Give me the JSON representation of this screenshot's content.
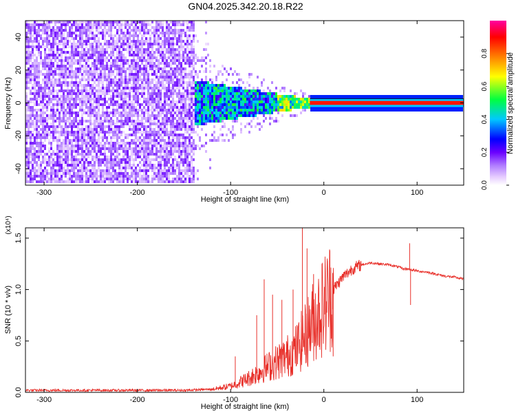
{
  "chart_data": [
    {
      "type": "heatmap",
      "title": "GN04.2025.342.20.18.R22",
      "xlabel": "Height of straight line (km)",
      "ylabel": "Frequency (Hz)",
      "xlim": [
        -320,
        150
      ],
      "ylim": [
        -50,
        50
      ],
      "xticks": [
        -300,
        -200,
        -100,
        0,
        100
      ],
      "yticks": [
        -40,
        -20,
        0,
        20,
        40
      ],
      "colorbar": {
        "label": "Normalized spectral amplitude",
        "range": [
          0,
          1
        ],
        "ticks": [
          "0.0",
          "0.2",
          "0.4",
          "0.6",
          "0.8"
        ],
        "tick_values": [
          0.0,
          0.2,
          0.4,
          0.6,
          0.8
        ],
        "colors": [
          "#ffffff",
          "#e6ccff",
          "#b07cff",
          "#6a00ff",
          "#0000ff",
          "#00c8ff",
          "#00ff40",
          "#ffff00",
          "#ff8000",
          "#ff0000",
          "#ff00a0"
        ]
      },
      "features": {
        "noise_region_end_km": -138,
        "tone_frequency_hz": 0,
        "tone_onset_km": -130,
        "tone_clean_from_km": -15
      }
    },
    {
      "type": "line",
      "xlabel": "Height of straight line (km)",
      "ylabel": "SNR (10 * v/v)",
      "scale_label": "(x10⁴)",
      "xlim": [
        -320,
        150
      ],
      "ylim": [
        0,
        1.6
      ],
      "xticks": [
        -300,
        -200,
        -100,
        0,
        100
      ],
      "yticks": [
        "0.0",
        "0.5",
        "1.0",
        "1.5"
      ],
      "ytick_values": [
        0.0,
        0.5,
        1.0,
        1.5
      ],
      "series": [
        {
          "name": "SNR",
          "color": "#e8302a",
          "envelope_x": [
            -320,
            -150,
            -120,
            -100,
            -80,
            -60,
            -40,
            -30,
            -20,
            -10,
            0,
            10,
            20,
            30,
            40,
            50,
            60,
            70,
            80,
            85,
            90,
            95,
            100,
            110,
            120,
            130,
            140,
            150
          ],
          "envelope_y": [
            0.02,
            0.02,
            0.03,
            0.06,
            0.14,
            0.25,
            0.35,
            0.42,
            0.55,
            0.72,
            0.85,
            1.0,
            1.12,
            1.2,
            1.24,
            1.26,
            1.25,
            1.24,
            1.22,
            1.2,
            1.2,
            1.19,
            1.18,
            1.17,
            1.15,
            1.13,
            1.12,
            1.1
          ],
          "spikes": [
            {
              "x": -95,
              "y": 0.35
            },
            {
              "x": -72,
              "y": 0.75
            },
            {
              "x": -64,
              "y": 1.1
            },
            {
              "x": -55,
              "y": 0.95
            },
            {
              "x": -45,
              "y": 0.9
            },
            {
              "x": -33,
              "y": 1.0
            },
            {
              "x": -23,
              "y": 1.6
            },
            {
              "x": -18,
              "y": 1.4
            },
            {
              "x": -11,
              "y": 1.15
            },
            {
              "x": 10,
              "y": 0.35
            },
            {
              "x": 92,
              "y": 1.45
            },
            {
              "x": 93,
              "y": 0.85
            }
          ]
        }
      ]
    }
  ]
}
